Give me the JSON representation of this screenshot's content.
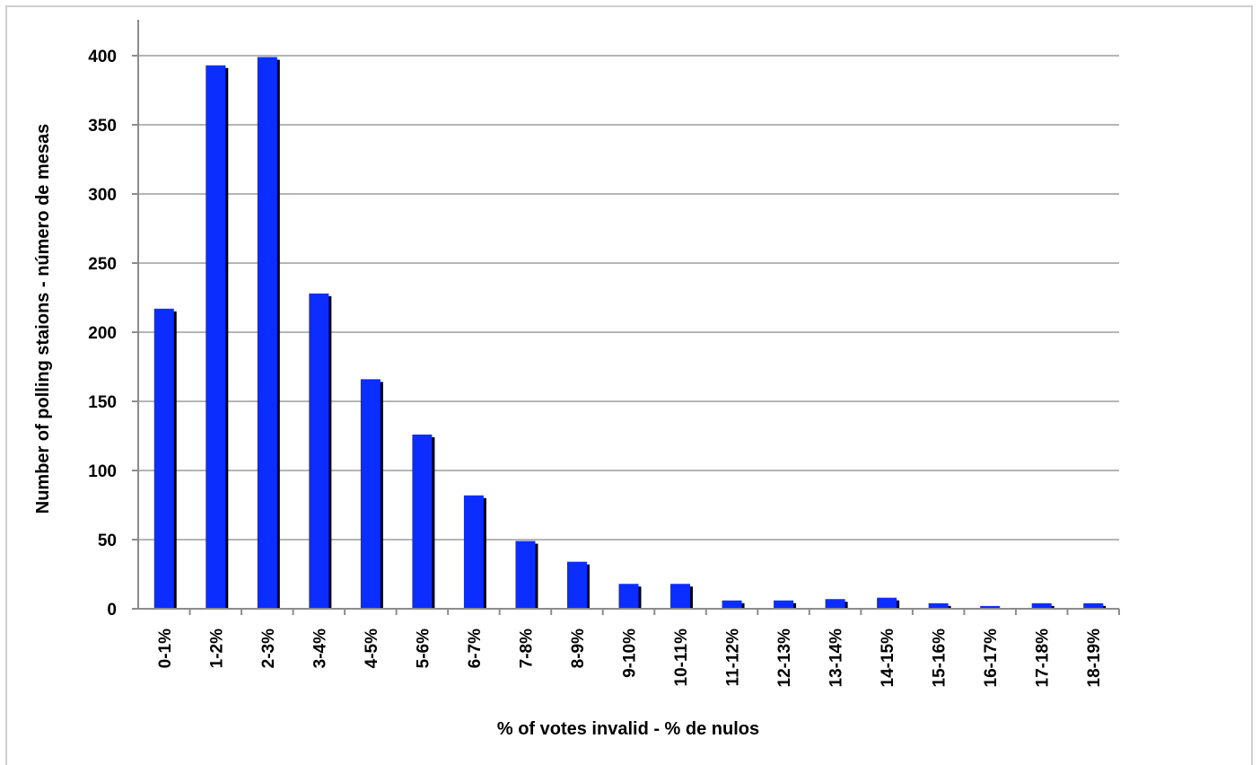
{
  "chart_data": {
    "type": "bar",
    "title": "",
    "xlabel": "% of votes invalid - % de nulos",
    "ylabel": "Number of polling staions - número de mesas",
    "categories": [
      "0-1%",
      "1-2%",
      "2-3%",
      "3-4%",
      "4-5%",
      "5-6%",
      "6-7%",
      "7-8%",
      "8-9%",
      "9-10%",
      "10-11%",
      "11-12%",
      "12-13%",
      "13-14%",
      "14-15%",
      "15-16%",
      "16-17%",
      "17-18%",
      "18-19%"
    ],
    "values": [
      217,
      393,
      399,
      228,
      166,
      126,
      82,
      49,
      34,
      18,
      18,
      6,
      6,
      7,
      8,
      4,
      2,
      4,
      4
    ],
    "ylim": [
      0,
      400
    ],
    "yticks": [
      0,
      50,
      100,
      150,
      200,
      250,
      300,
      350,
      400
    ],
    "grid": true,
    "legend": "none",
    "colors": {
      "bar": "#0b2dff",
      "bar_shadow": "#000000",
      "grid": "#b5b5b5",
      "axis": "#8c8c8c",
      "frame": "#cfcfcf"
    }
  }
}
